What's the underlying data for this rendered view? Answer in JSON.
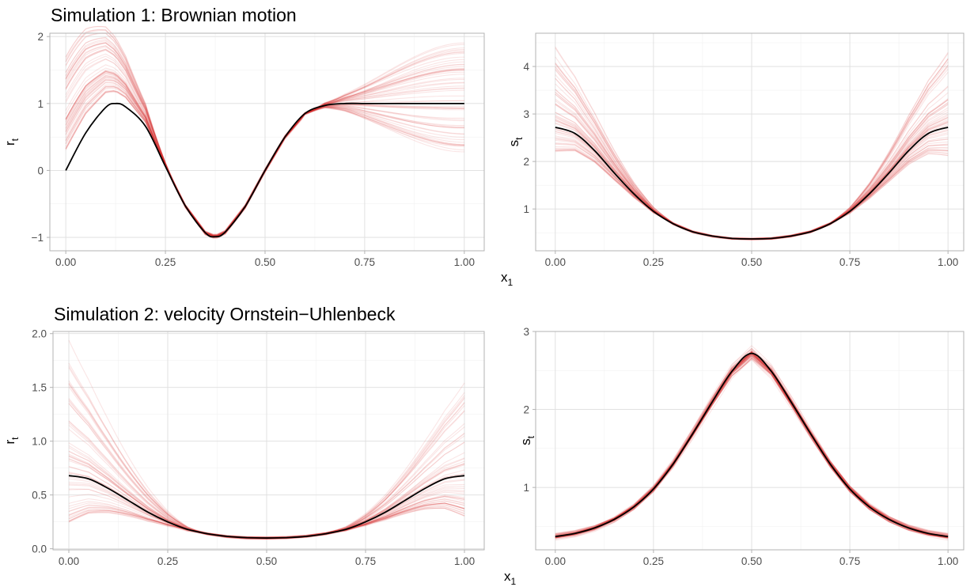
{
  "figure": {
    "simulation_1_title": "Simulation 1: Brownian motion",
    "simulation_2_title": "Simulation 2: velocity Ornstein−Uhlenbeck",
    "shared_xlabel": "x",
    "shared_xlabel_sub": "1"
  },
  "colors": {
    "simulated_curves": "#d62728",
    "true_curve": "#000000",
    "grid": "#dedede",
    "panel_border": "#b3b3b3"
  },
  "chart_data": [
    {
      "type": "line",
      "panel": "simulation-1-r",
      "ylabel": "r",
      "ylabel_sub": "t",
      "xlim": [
        -0.04,
        1.05
      ],
      "ylim": [
        -1.2,
        2.05
      ],
      "xticks": [
        0,
        0.25,
        0.5,
        0.75,
        1
      ],
      "xtick_labels": [
        "0.00",
        "0.25",
        "0.50",
        "0.75",
        "1.00"
      ],
      "yticks": [
        -1,
        0,
        1,
        2
      ],
      "ytick_labels": [
        "−1",
        "0",
        "1",
        "2"
      ],
      "grid": true,
      "true_curve": {
        "x": [
          0,
          0.05,
          0.1,
          0.125,
          0.15,
          0.2,
          0.25,
          0.3,
          0.35,
          0.375,
          0.4,
          0.45,
          0.5,
          0.55,
          0.6,
          0.65,
          0.7,
          0.75,
          0.8,
          0.85,
          0.9,
          0.95,
          1
        ],
        "y": [
          0,
          0.56,
          0.94,
          1,
          0.95,
          0.66,
          0.06,
          -0.53,
          -0.93,
          -0.99,
          -0.92,
          -0.54,
          0,
          0.5,
          0.85,
          0.97,
          1,
          1,
          1,
          1,
          1,
          1,
          1
        ]
      },
      "simulations": {
        "count": 60,
        "start_range": [
          0.3,
          1.75
        ],
        "end_range": [
          0.25,
          1.9
        ]
      }
    },
    {
      "type": "line",
      "panel": "simulation-1-s",
      "ylabel": "s",
      "ylabel_sub": "t",
      "xlim": [
        -0.05,
        1.04
      ],
      "ylim": [
        0.12,
        4.7
      ],
      "xticks": [
        0,
        0.25,
        0.5,
        0.75,
        1
      ],
      "xtick_labels": [
        "0.00",
        "0.25",
        "0.50",
        "0.75",
        "1.00"
      ],
      "yticks": [
        1,
        2,
        3,
        4
      ],
      "ytick_labels": [
        "1",
        "2",
        "3",
        "4"
      ],
      "grid": true,
      "true_curve": {
        "x": [
          0,
          0.05,
          0.1,
          0.15,
          0.2,
          0.25,
          0.3,
          0.35,
          0.4,
          0.45,
          0.5,
          0.55,
          0.6,
          0.65,
          0.7,
          0.75,
          0.8,
          0.85,
          0.9,
          0.95,
          1
        ],
        "y": [
          2.72,
          2.59,
          2.23,
          1.76,
          1.32,
          0.95,
          0.69,
          0.52,
          0.43,
          0.38,
          0.37,
          0.38,
          0.43,
          0.52,
          0.69,
          0.95,
          1.32,
          1.76,
          2.23,
          2.59,
          2.72
        ]
      },
      "simulations": {
        "count": 60,
        "start_range": [
          2.2,
          4.55
        ],
        "end_range": [
          2.1,
          4.3
        ]
      }
    },
    {
      "type": "line",
      "panel": "simulation-2-r",
      "ylabel": "r",
      "ylabel_sub": "t",
      "xlim": [
        -0.04,
        1.05
      ],
      "ylim": [
        -0.01,
        2.02
      ],
      "xticks": [
        0,
        0.25,
        0.5,
        0.75,
        1
      ],
      "xtick_labels": [
        "0.00",
        "0.25",
        "0.50",
        "0.75",
        "1.00"
      ],
      "yticks": [
        0,
        0.5,
        1,
        1.5,
        2
      ],
      "ytick_labels": [
        "0.0",
        "0.5",
        "1.0",
        "1.5",
        "2.0"
      ],
      "grid": true,
      "true_curve": {
        "x": [
          0,
          0.05,
          0.1,
          0.15,
          0.2,
          0.25,
          0.3,
          0.35,
          0.4,
          0.45,
          0.5,
          0.55,
          0.6,
          0.65,
          0.7,
          0.75,
          0.8,
          0.85,
          0.9,
          0.95,
          1
        ],
        "y": [
          0.68,
          0.65,
          0.56,
          0.45,
          0.34,
          0.25,
          0.18,
          0.14,
          0.115,
          0.103,
          0.1,
          0.103,
          0.115,
          0.14,
          0.18,
          0.25,
          0.34,
          0.45,
          0.56,
          0.65,
          0.68
        ]
      },
      "simulations": {
        "count": 60,
        "start_range": [
          0.25,
          1.95
        ],
        "end_range": [
          0.3,
          1.55
        ]
      }
    },
    {
      "type": "line",
      "panel": "simulation-2-s",
      "ylabel": "s",
      "ylabel_sub": "t",
      "xlim": [
        -0.05,
        1.04
      ],
      "ylim": [
        0.2,
        3.0
      ],
      "xticks": [
        0,
        0.25,
        0.5,
        0.75,
        1
      ],
      "xtick_labels": [
        "0.00",
        "0.25",
        "0.50",
        "0.75",
        "1.00"
      ],
      "yticks": [
        1,
        2,
        3
      ],
      "ytick_labels": [
        "1",
        "2",
        "3"
      ],
      "grid": true,
      "true_curve": {
        "x": [
          0,
          0.05,
          0.1,
          0.15,
          0.2,
          0.25,
          0.3,
          0.35,
          0.4,
          0.45,
          0.5,
          0.55,
          0.6,
          0.65,
          0.7,
          0.75,
          0.8,
          0.85,
          0.9,
          0.95,
          1
        ],
        "y": [
          0.37,
          0.41,
          0.48,
          0.59,
          0.75,
          0.98,
          1.3,
          1.69,
          2.1,
          2.49,
          2.72,
          2.49,
          2.1,
          1.69,
          1.3,
          0.98,
          0.75,
          0.59,
          0.48,
          0.41,
          0.37
        ]
      },
      "simulations": {
        "count": 60,
        "spread_center": 0.1,
        "spread_edge": 0.05
      }
    }
  ]
}
